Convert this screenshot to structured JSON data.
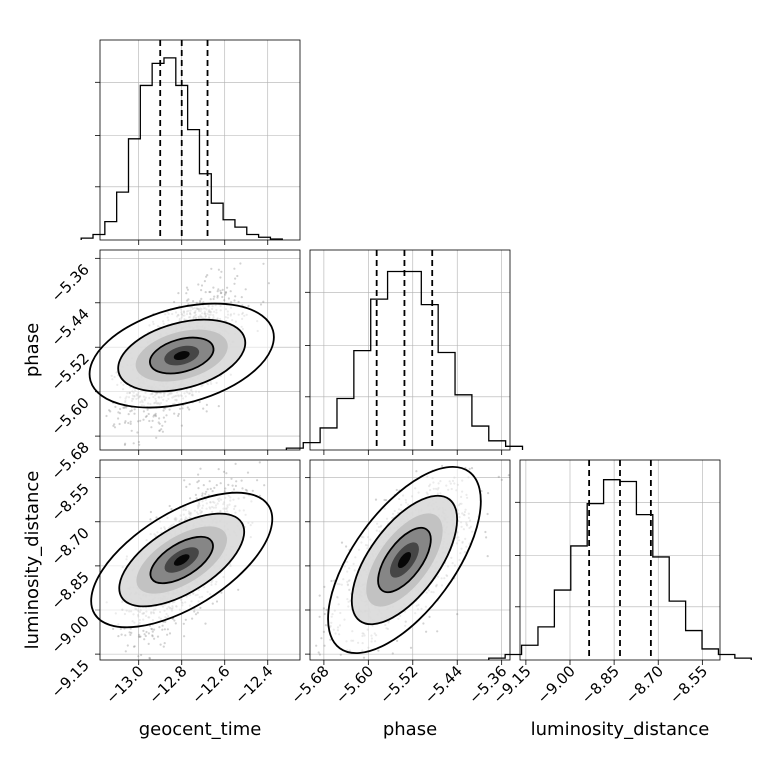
{
  "chart_data": {
    "type": "corner",
    "parameters": [
      "geocent_time",
      "phase",
      "luminosity_distance"
    ],
    "ranges": {
      "geocent_time": [
        -13.18,
        -12.25
      ],
      "phase": [
        -5.705,
        -5.345
      ],
      "luminosity_distance": [
        -9.17,
        -8.49
      ]
    },
    "ticks": {
      "geocent_time": [
        -13.0,
        -12.8,
        -12.6,
        -12.4
      ],
      "phase": [
        -5.68,
        -5.6,
        -5.52,
        -5.44,
        -5.36
      ],
      "luminosity_distance": [
        -9.15,
        -9.0,
        -8.85,
        -8.7,
        -8.55
      ]
    },
    "tick_labels": {
      "geocent_time": [
        "−13.0",
        "−12.8",
        "−12.6",
        "−12.4"
      ],
      "phase": [
        "−5.68",
        "−5.60",
        "−5.52",
        "−5.44",
        "−5.36"
      ],
      "luminosity_distance": [
        "−9.15",
        "−9.00",
        "−8.85",
        "−8.70",
        "−8.55"
      ]
    },
    "axis_labels": {
      "geocent_time": "geocent_time",
      "phase": "phase",
      "luminosity_distance": "luminosity_distance"
    },
    "means": {
      "geocent_time": -12.8,
      "phase": -5.535,
      "luminosity_distance": -8.83
    },
    "quantiles": {
      "geocent_time": [
        -12.9,
        -12.8,
        -12.68
      ],
      "phase": [
        -5.585,
        -5.535,
        -5.485
      ],
      "luminosity_distance": [
        -8.935,
        -8.83,
        -8.725
      ]
    },
    "histograms": {
      "geocent_time": [
        0.01,
        0.03,
        0.1,
        0.26,
        0.55,
        0.84,
        0.96,
        0.99,
        0.84,
        0.6,
        0.36,
        0.2,
        0.11,
        0.07,
        0.03,
        0.015,
        0.005
      ],
      "phase": [
        0.01,
        0.04,
        0.12,
        0.28,
        0.54,
        0.82,
        0.97,
        0.97,
        0.79,
        0.53,
        0.3,
        0.13,
        0.05,
        0.02
      ],
      "luminosity_distance": [
        0.01,
        0.03,
        0.08,
        0.18,
        0.38,
        0.62,
        0.85,
        0.98,
        0.97,
        0.79,
        0.56,
        0.32,
        0.16,
        0.06,
        0.03,
        0.01
      ]
    },
    "correlations": {
      "phase_vs_geocent_time": 0.6,
      "luminosity_distance_vs_geocent_time": 0.65,
      "luminosity_distance_vs_phase": 0.65
    },
    "contour_levels": [
      0.393,
      0.865,
      0.989
    ],
    "grid": true,
    "colors": {
      "line": "#000000",
      "points": "#7f7f7f",
      "grid": "#b0b0b0"
    }
  }
}
